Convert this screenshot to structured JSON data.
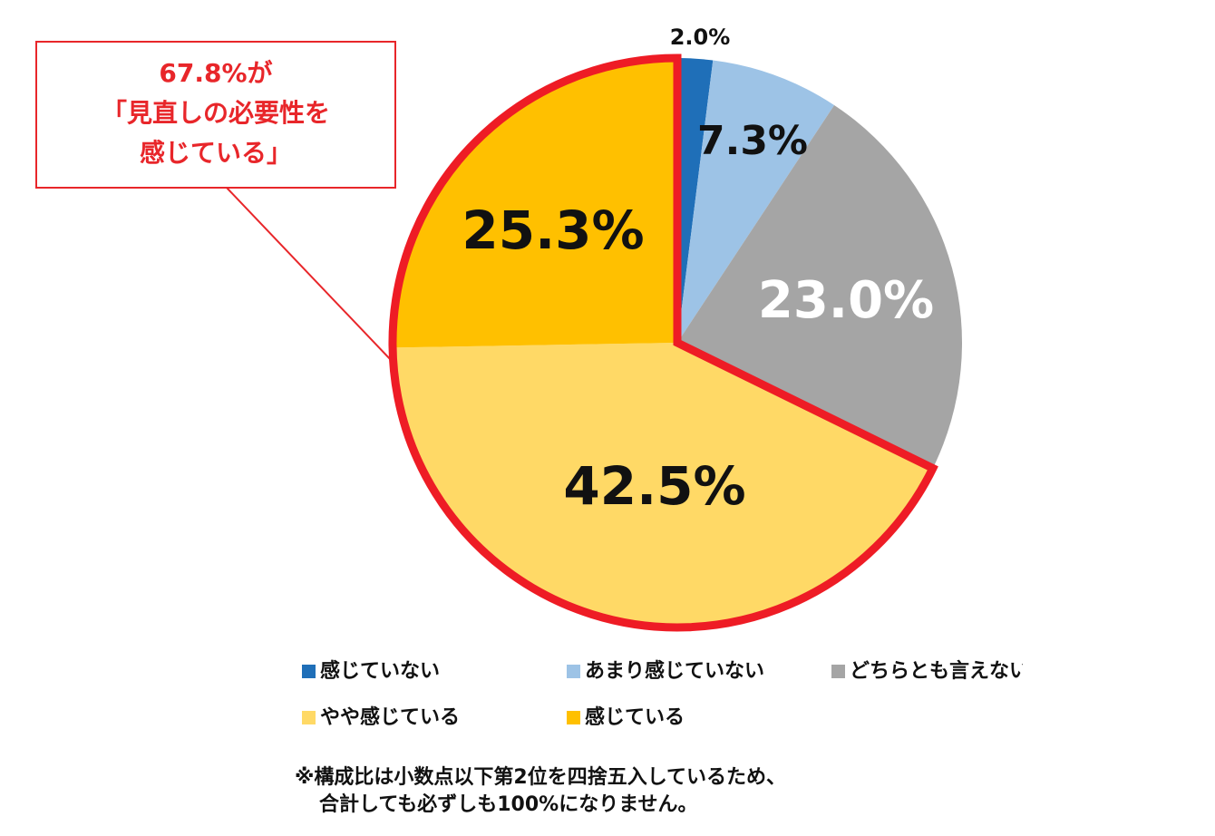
{
  "chart_data": {
    "type": "pie",
    "categories": [
      "感じていない",
      "あまり感じていない",
      "どちらとも言えない",
      "やや感じている",
      "感じている"
    ],
    "values": [
      2.0,
      7.3,
      23.0,
      42.5,
      25.3
    ],
    "value_labels": [
      "2.0%",
      "7.3%",
      "23.0%",
      "42.5%",
      "25.3%"
    ],
    "colors": [
      "#1f6fb8",
      "#9dc3e6",
      "#a5a5a5",
      "#ffd966",
      "#ffc000"
    ],
    "annotation": [
      "67.8%が",
      "「見直しの必要性を",
      "感じている」"
    ],
    "note": [
      "※構成比は小数点以下第2位を四捨五入しているため、",
      "合計しても必ずしも100%になりません。"
    ]
  }
}
